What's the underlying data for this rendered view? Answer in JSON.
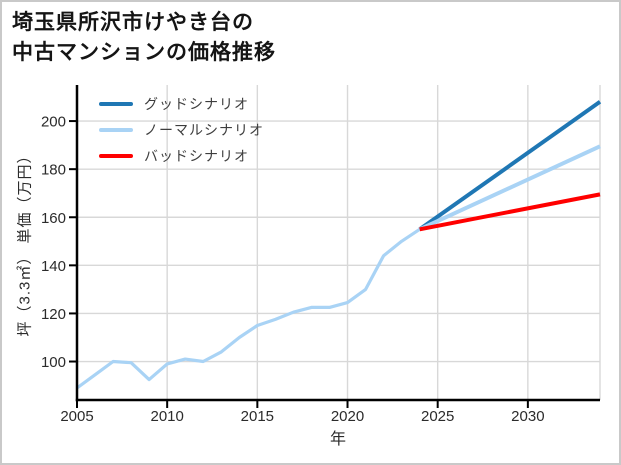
{
  "header": {
    "title_line1": "埼玉県所沢市けやき台の",
    "title_line2": "中古マンションの価格推移"
  },
  "chart_data": {
    "type": "line",
    "title": "埼玉県所沢市けやき台の中古マンションの価格推移",
    "xlabel": "年",
    "ylabel": "坪（3.3㎡） 単価（万円）",
    "xlim": [
      2005,
      2034
    ],
    "ylim": [
      84,
      215
    ],
    "xticks": [
      2005,
      2010,
      2015,
      2020,
      2025,
      2030
    ],
    "yticks": [
      100,
      120,
      140,
      160,
      180,
      200
    ],
    "grid": true,
    "legend_position": "upper-left",
    "style": {
      "grid_color": "#d8d8d8",
      "spine_color": "#000000",
      "good_color": "#1f77b4",
      "normal_color": "#a9d3f5",
      "bad_color": "#ff0000"
    },
    "series": [
      {
        "id": "history",
        "name": "",
        "color": "#a9d3f5",
        "width": 3.2,
        "x": [
          2005,
          2006,
          2007,
          2008,
          2009,
          2010,
          2011,
          2012,
          2013,
          2014,
          2015,
          2016,
          2017,
          2018,
          2019,
          2020,
          2021,
          2022,
          2023,
          2024
        ],
        "y": [
          89,
          94.5,
          100,
          99.5,
          92.5,
          99,
          101,
          100,
          104,
          110,
          115,
          117.5,
          120.5,
          122.5,
          122.5,
          124.5,
          130,
          144,
          150,
          155
        ]
      },
      {
        "id": "good-scenario",
        "name": "グッドシナリオ",
        "color": "#1f77b4",
        "width": 4,
        "x": [
          2024,
          2034
        ],
        "y": [
          155,
          208
        ]
      },
      {
        "id": "normal-scenario",
        "name": "ノーマルシナリオ",
        "color": "#a9d3f5",
        "width": 4,
        "x": [
          2024,
          2034
        ],
        "y": [
          155,
          189.5
        ]
      },
      {
        "id": "bad-scenario",
        "name": "バッドシナリオ",
        "color": "#ff0000",
        "width": 4,
        "x": [
          2024,
          2034
        ],
        "y": [
          155,
          169.5
        ]
      }
    ]
  }
}
